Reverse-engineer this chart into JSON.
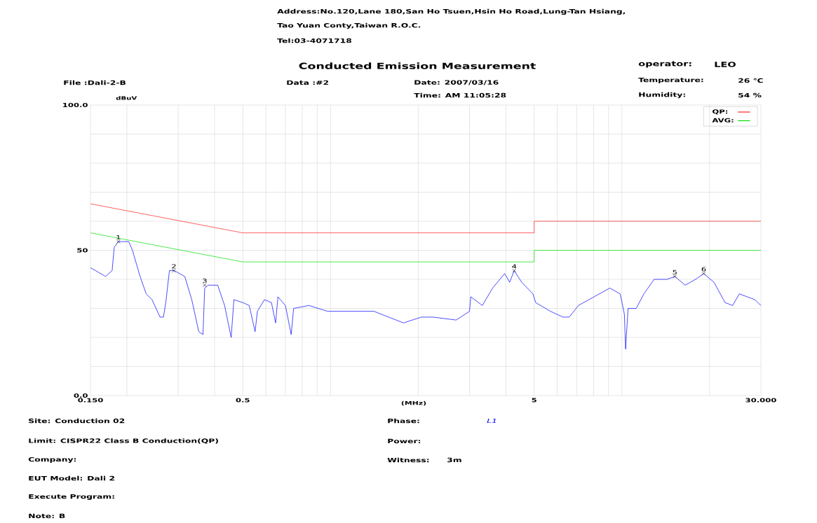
{
  "chart_data": {
    "type": "line",
    "title": "Conducted Emission Measurement",
    "xlabel": "(MHz)",
    "ylabel": "dBuV",
    "log": "x",
    "xlim": [
      0.15,
      30
    ],
    "ylim": [
      0,
      100
    ],
    "xticks": [
      {
        "value": 0.15,
        "label": "0.150"
      },
      {
        "value": 0.2,
        "label": null
      },
      {
        "value": 0.3,
        "label": null
      },
      {
        "value": 0.4,
        "label": null
      },
      0.5,
      {
        "value": 0.6,
        "label": null
      },
      {
        "value": 0.7,
        "label": null
      },
      {
        "value": 0.8,
        "label": null
      },
      {
        "value": 0.9,
        "label": null
      },
      {
        "value": 1,
        "label": null
      },
      {
        "value": 2,
        "label": null
      },
      {
        "value": 3,
        "label": null
      },
      {
        "value": 4,
        "label": null
      },
      5,
      {
        "value": 6,
        "label": null
      },
      {
        "value": 7,
        "label": null
      },
      {
        "value": 8,
        "label": null
      },
      {
        "value": 9,
        "label": null
      },
      {
        "value": 10,
        "label": null
      },
      {
        "value": 20,
        "label": null
      },
      {
        "value": 30,
        "label": "30.000"
      }
    ],
    "yticks": [
      {
        "value": 0,
        "label": "0.0"
      },
      {
        "value": 10,
        "label": null
      },
      {
        "value": 20,
        "label": null
      },
      {
        "value": 30,
        "label": null
      },
      {
        "value": 40,
        "label": null
      },
      50,
      {
        "value": 60,
        "label": null
      },
      {
        "value": 70,
        "label": null
      },
      {
        "value": 80,
        "label": null
      },
      {
        "value": 90,
        "label": null
      },
      {
        "value": 100,
        "label": "100.0"
      }
    ],
    "grid": true,
    "legend": "top right",
    "series": [
      {
        "name": "QP:",
        "color": "#ff2020",
        "x": [
          0.15,
          0.5,
          5,
          5,
          30
        ],
        "values": [
          66,
          56,
          56,
          60,
          60
        ]
      },
      {
        "name": "AVG:",
        "color": "#00e000",
        "x": [
          0.15,
          0.5,
          5,
          5,
          30
        ],
        "values": [
          56,
          46,
          46,
          50,
          50
        ]
      },
      {
        "color": "#0000ff",
        "x": [
          0.15,
          0.169,
          0.178,
          0.181,
          0.187,
          0.203,
          0.209,
          0.222,
          0.233,
          0.244,
          0.26,
          0.267,
          0.272,
          0.28,
          0.291,
          0.316,
          0.334,
          0.353,
          0.365,
          0.37,
          0.38,
          0.41,
          0.433,
          0.456,
          0.466,
          0.5,
          0.526,
          0.551,
          0.561,
          0.593,
          0.627,
          0.648,
          0.66,
          0.7,
          0.733,
          0.747,
          0.843,
          0.978,
          1.17,
          1.41,
          1.78,
          2.05,
          2.25,
          2.7,
          3.0,
          3.03,
          3.32,
          3.6,
          3.96,
          4.12,
          4.27,
          4.53,
          4.95,
          5.06,
          5.69,
          6.28,
          6.6,
          7.09,
          8.03,
          9.09,
          9.87,
          10.2,
          10.3,
          10.5,
          11.2,
          11.9,
          12.9,
          14.3,
          15.2,
          16.5,
          17.9,
          19.1,
          20.7,
          22.6,
          24.0,
          25.3,
          28.6,
          30
        ],
        "values": [
          44,
          41,
          43,
          51,
          53,
          53,
          50,
          41,
          35,
          33,
          27,
          27,
          32,
          43,
          43,
          41,
          33,
          22,
          21,
          37,
          38,
          38,
          31,
          20,
          33,
          32,
          31,
          22,
          29,
          33,
          32,
          25,
          34,
          31,
          21,
          30,
          31,
          29,
          29,
          29,
          25,
          27,
          27,
          26,
          29,
          34,
          31,
          37,
          42,
          39,
          43,
          39,
          35,
          32,
          29,
          27,
          27,
          31,
          34,
          37,
          35,
          28,
          16,
          30,
          30,
          35,
          40,
          40,
          41,
          38,
          40,
          42,
          39,
          32,
          31,
          35,
          33,
          31
        ]
      }
    ],
    "annotations": [
      {
        "text": "1",
        "x": 0.187,
        "y": 53
      },
      {
        "text": "2",
        "x": 0.29,
        "y": 43
      },
      {
        "text": "3",
        "x": 0.37,
        "y": 38
      },
      {
        "text": "4",
        "x": 4.27,
        "y": 43
      },
      {
        "text": "5",
        "x": 15.2,
        "y": 41
      },
      {
        "text": "6",
        "x": 19.1,
        "y": 42
      },
      "Address:No.120,Lane 180,San Ho Tsuen,Hsin Ho Road,Lung-Tan Hsiang,",
      "Tao Yuan Conty,Taiwan R.O.C.",
      "Tel:03-4071718",
      "File :Dali-2-B",
      "Data :#2",
      "Date: 2007/03/16",
      "Time: AM 11:05:28",
      "operator:",
      "LEO",
      "Temperature:",
      "26 ℃",
      "Humidity:",
      "54 %",
      "Site:  Conduction 02",
      "Limit:  CISPR22 Class B Conduction(QP)",
      "Company:",
      "EUT Model:   Dali 2",
      "Execute Program:",
      "Note:  B",
      "Phase:",
      "L1",
      "Power:",
      "Witness:",
      "3m"
    ]
  }
}
